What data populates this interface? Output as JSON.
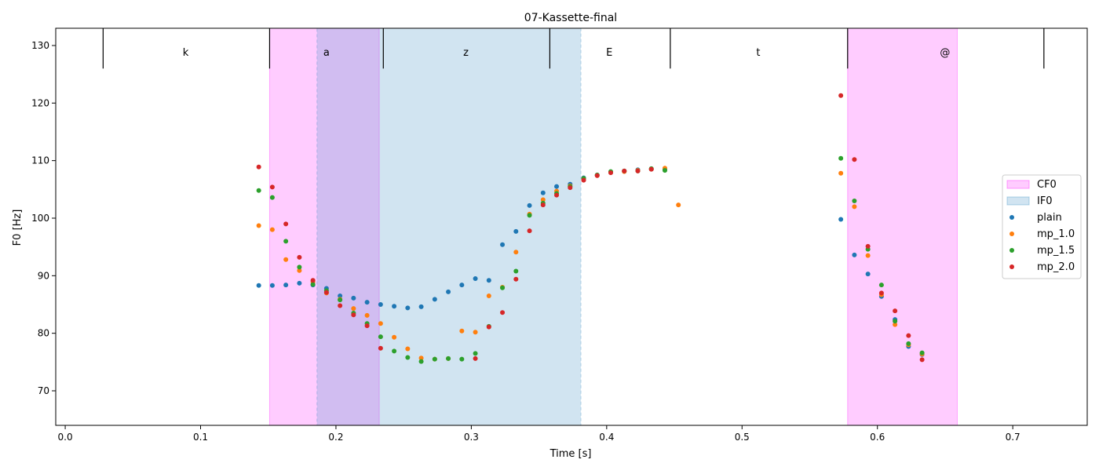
{
  "chart_data": {
    "type": "scatter",
    "title": "07-Kassette-final",
    "xlabel": "Time [s]",
    "ylabel": "F0 [Hz]",
    "xlim": [
      -0.007,
      0.755
    ],
    "ylim": [
      64,
      133
    ],
    "xticks": [
      "0.0",
      "0.1",
      "0.2",
      "0.3",
      "0.4",
      "0.5",
      "0.6",
      "0.7"
    ],
    "yticks": [
      "70",
      "80",
      "90",
      "100",
      "110",
      "120",
      "130"
    ],
    "grid": false,
    "legend_position": "right",
    "regions": [
      {
        "label": "CF0",
        "x0": 0.151,
        "x1": 0.232,
        "color": "#ff00ff",
        "opacity": 0.2
      },
      {
        "label": "CF0",
        "x0": 0.578,
        "x1": 0.659,
        "color": "#ff00ff",
        "opacity": 0.2
      },
      {
        "label": "IF0",
        "x0": 0.186,
        "x1": 0.381,
        "color": "#3f8fc4",
        "opacity": 0.24
      }
    ],
    "segments": {
      "boundaries": [
        0.028,
        0.151,
        0.235,
        0.358,
        0.447,
        0.578,
        0.723
      ],
      "labels": [
        {
          "text": "k",
          "x": 0.089
        },
        {
          "text": "a",
          "x": 0.193
        },
        {
          "text": "z",
          "x": 0.296
        },
        {
          "text": "E",
          "x": 0.402
        },
        {
          "text": "t",
          "x": 0.512
        },
        {
          "text": "@",
          "x": 0.65
        }
      ],
      "y_top": 133,
      "y_bottom": 126
    },
    "legend": [
      {
        "label": "CF0",
        "kind": "patch",
        "color": "#ff00ff",
        "opacity": 0.2
      },
      {
        "label": "IF0",
        "kind": "patch",
        "color": "#3f8fc4",
        "opacity": 0.24
      },
      {
        "label": "plain",
        "kind": "point",
        "color": "#1f77b4"
      },
      {
        "label": "mp_1.0",
        "kind": "point",
        "color": "#ff7f0e"
      },
      {
        "label": "mp_1.5",
        "kind": "point",
        "color": "#2ca02c"
      },
      {
        "label": "mp_2.0",
        "kind": "point",
        "color": "#d62728"
      }
    ],
    "series": [
      {
        "name": "plain",
        "color": "#1f77b4",
        "points": [
          [
            0.143,
            88.3
          ],
          [
            0.153,
            88.3
          ],
          [
            0.163,
            88.4
          ],
          [
            0.173,
            88.7
          ],
          [
            0.183,
            88.4
          ],
          [
            0.193,
            87.8
          ],
          [
            0.203,
            86.5
          ],
          [
            0.213,
            86.1
          ],
          [
            0.223,
            85.4
          ],
          [
            0.233,
            85.0
          ],
          [
            0.243,
            84.7
          ],
          [
            0.253,
            84.4
          ],
          [
            0.263,
            84.6
          ],
          [
            0.273,
            85.9
          ],
          [
            0.283,
            87.2
          ],
          [
            0.293,
            88.4
          ],
          [
            0.303,
            89.5
          ],
          [
            0.313,
            89.2
          ],
          [
            0.323,
            95.4
          ],
          [
            0.333,
            97.7
          ],
          [
            0.343,
            102.2
          ],
          [
            0.353,
            104.4
          ],
          [
            0.363,
            105.5
          ],
          [
            0.373,
            105.9
          ],
          [
            0.383,
            107.0
          ],
          [
            0.393,
            107.5
          ],
          [
            0.403,
            108.0
          ],
          [
            0.413,
            108.2
          ],
          [
            0.423,
            108.4
          ],
          [
            0.433,
            108.5
          ],
          [
            0.443,
            108.5
          ],
          [
            0.573,
            99.8
          ],
          [
            0.583,
            93.6
          ],
          [
            0.593,
            90.3
          ],
          [
            0.603,
            86.4
          ],
          [
            0.613,
            82.4
          ],
          [
            0.623,
            77.7
          ],
          [
            0.633,
            76.3
          ]
        ]
      },
      {
        "name": "mp_1.0",
        "color": "#ff7f0e",
        "points": [
          [
            0.143,
            98.7
          ],
          [
            0.153,
            98.0
          ],
          [
            0.163,
            92.8
          ],
          [
            0.173,
            90.9
          ],
          [
            0.183,
            88.9
          ],
          [
            0.193,
            87.0
          ],
          [
            0.203,
            85.9
          ],
          [
            0.213,
            84.3
          ],
          [
            0.223,
            83.1
          ],
          [
            0.233,
            81.7
          ],
          [
            0.243,
            79.3
          ],
          [
            0.253,
            77.3
          ],
          [
            0.263,
            75.7
          ],
          [
            0.273,
            75.5
          ],
          [
            0.283,
            75.6
          ],
          [
            0.293,
            80.4
          ],
          [
            0.303,
            80.2
          ],
          [
            0.313,
            86.5
          ],
          [
            0.323,
            88.0
          ],
          [
            0.333,
            94.1
          ],
          [
            0.343,
            100.7
          ],
          [
            0.353,
            103.2
          ],
          [
            0.363,
            104.7
          ],
          [
            0.373,
            105.6
          ],
          [
            0.383,
            106.9
          ],
          [
            0.393,
            107.4
          ],
          [
            0.403,
            108.0
          ],
          [
            0.413,
            108.1
          ],
          [
            0.423,
            108.3
          ],
          [
            0.433,
            108.5
          ],
          [
            0.443,
            108.7
          ],
          [
            0.453,
            102.3
          ],
          [
            0.573,
            107.8
          ],
          [
            0.583,
            102.0
          ],
          [
            0.593,
            93.5
          ],
          [
            0.603,
            86.7
          ],
          [
            0.613,
            81.5
          ],
          [
            0.623,
            78.0
          ],
          [
            0.633,
            76.4
          ]
        ]
      },
      {
        "name": "mp_1.5",
        "color": "#2ca02c",
        "points": [
          [
            0.143,
            104.8
          ],
          [
            0.153,
            103.6
          ],
          [
            0.163,
            96.0
          ],
          [
            0.173,
            91.5
          ],
          [
            0.183,
            88.5
          ],
          [
            0.193,
            87.4
          ],
          [
            0.203,
            85.8
          ],
          [
            0.213,
            83.5
          ],
          [
            0.223,
            81.7
          ],
          [
            0.233,
            79.4
          ],
          [
            0.243,
            76.9
          ],
          [
            0.253,
            75.8
          ],
          [
            0.263,
            75.1
          ],
          [
            0.273,
            75.5
          ],
          [
            0.283,
            75.6
          ],
          [
            0.293,
            75.5
          ],
          [
            0.303,
            76.5
          ],
          [
            0.313,
            81.2
          ],
          [
            0.323,
            87.9
          ],
          [
            0.333,
            90.8
          ],
          [
            0.343,
            100.5
          ],
          [
            0.353,
            102.6
          ],
          [
            0.363,
            104.3
          ],
          [
            0.373,
            105.5
          ],
          [
            0.383,
            106.9
          ],
          [
            0.393,
            107.5
          ],
          [
            0.403,
            108.1
          ],
          [
            0.413,
            108.2
          ],
          [
            0.423,
            108.2
          ],
          [
            0.433,
            108.6
          ],
          [
            0.443,
            108.3
          ],
          [
            0.573,
            110.4
          ],
          [
            0.583,
            103.0
          ],
          [
            0.593,
            94.6
          ],
          [
            0.603,
            88.4
          ],
          [
            0.613,
            82.1
          ],
          [
            0.623,
            78.2
          ],
          [
            0.633,
            76.6
          ]
        ]
      },
      {
        "name": "mp_2.0",
        "color": "#d62728",
        "points": [
          [
            0.143,
            108.9
          ],
          [
            0.153,
            105.4
          ],
          [
            0.163,
            99.0
          ],
          [
            0.173,
            93.2
          ],
          [
            0.183,
            89.2
          ],
          [
            0.193,
            87.1
          ],
          [
            0.203,
            84.8
          ],
          [
            0.213,
            83.2
          ],
          [
            0.223,
            81.3
          ],
          [
            0.233,
            77.4
          ],
          [
            0.303,
            75.6
          ],
          [
            0.313,
            81.1
          ],
          [
            0.323,
            83.6
          ],
          [
            0.333,
            89.4
          ],
          [
            0.343,
            97.8
          ],
          [
            0.353,
            102.3
          ],
          [
            0.363,
            104.0
          ],
          [
            0.373,
            105.3
          ],
          [
            0.383,
            106.6
          ],
          [
            0.393,
            107.4
          ],
          [
            0.403,
            107.9
          ],
          [
            0.413,
            108.2
          ],
          [
            0.423,
            108.2
          ],
          [
            0.433,
            108.5
          ],
          [
            0.573,
            121.3
          ],
          [
            0.583,
            110.2
          ],
          [
            0.593,
            95.1
          ],
          [
            0.603,
            87.0
          ],
          [
            0.613,
            83.9
          ],
          [
            0.623,
            79.6
          ],
          [
            0.633,
            75.4
          ]
        ]
      }
    ]
  }
}
